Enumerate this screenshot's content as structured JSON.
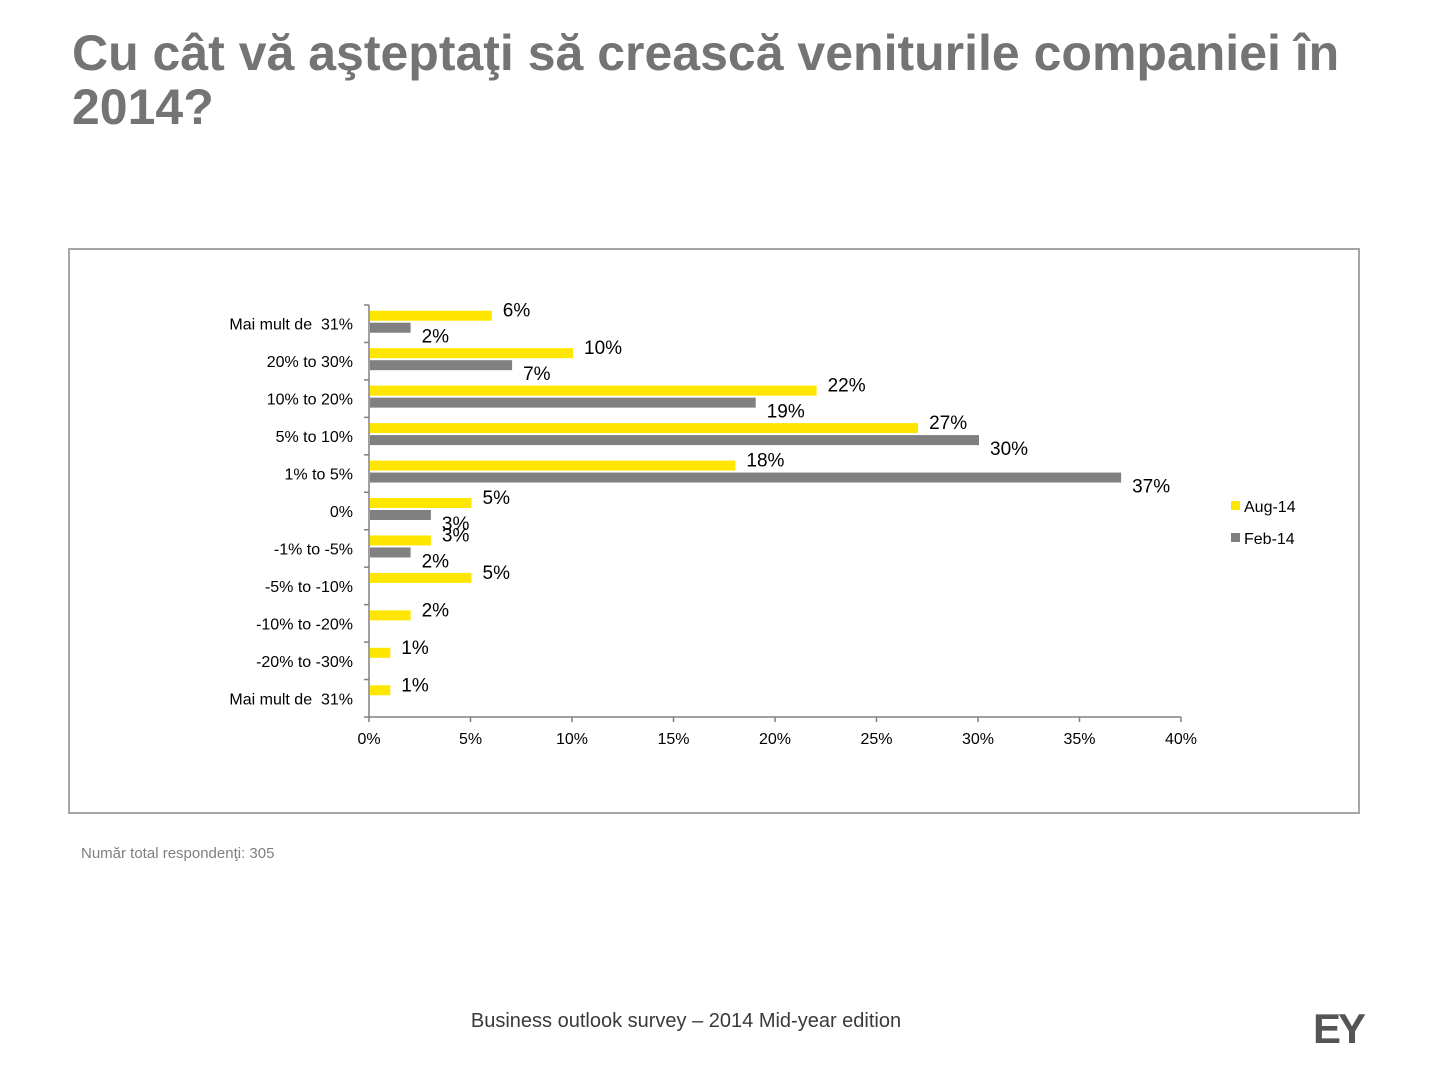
{
  "slide": {
    "title": "Cu cât vă aşteptaţi să crească veniturile companiei în 2014?",
    "note": "Număr total respondenţi: 305",
    "footer": "Business outlook survey – 2014 Mid-year edition",
    "logo": "EY"
  },
  "colors": {
    "aug": "#ffe600",
    "feb": "#808080",
    "axis": "#808080"
  },
  "chart_data": {
    "type": "bar",
    "orientation": "horizontal",
    "categories": [
      "Mai mult de  31%",
      "20% to 30%",
      "10% to 20%",
      "5% to 10%",
      "1% to 5%",
      "0%",
      "-1% to -5%",
      "-5% to -10%",
      "-10% to -20%",
      "-20% to -30%",
      "Mai mult de  31%"
    ],
    "series": [
      {
        "name": "Aug-14",
        "values": [
          6,
          10,
          22,
          27,
          18,
          5,
          3,
          5,
          2,
          1,
          1
        ],
        "labels": [
          "6%",
          "10%",
          "22%",
          "27%",
          "18%",
          "5%",
          "3%",
          "5%",
          "2%",
          "1%",
          "1%"
        ]
      },
      {
        "name": "Feb-14",
        "values": [
          2,
          7,
          19,
          30,
          37,
          3,
          2,
          null,
          null,
          null,
          null
        ],
        "labels": [
          "2%",
          "7%",
          "19%",
          "30%",
          "37%",
          "3%",
          "2%",
          null,
          null,
          null,
          null
        ]
      }
    ],
    "xlim": [
      0,
      40
    ],
    "xticks": [
      "0%",
      "5%",
      "10%",
      "15%",
      "20%",
      "25%",
      "30%",
      "35%",
      "40%"
    ],
    "legend_position": "right",
    "grid": false
  }
}
